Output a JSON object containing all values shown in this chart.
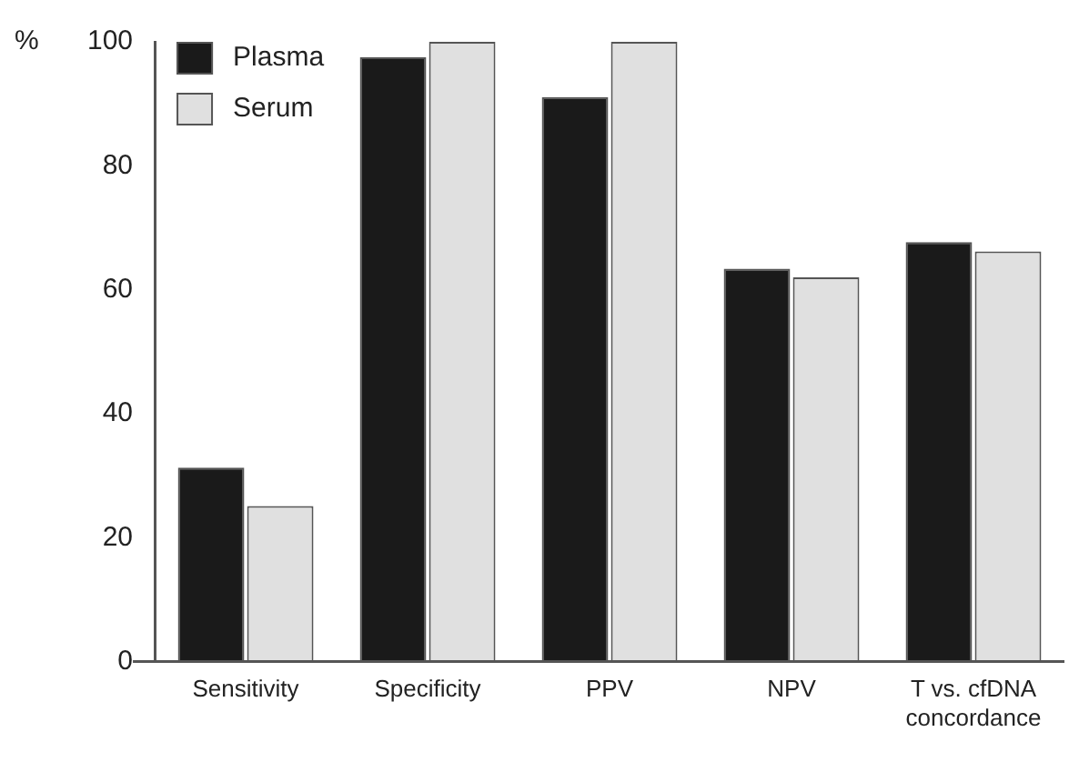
{
  "chart_data": {
    "type": "bar",
    "ylabel": "%",
    "categories": [
      "Sensitivity",
      "Specificity",
      "PPV",
      "NPV",
      "T vs. cfDNA concordance"
    ],
    "series": [
      {
        "name": "Plasma",
        "color": "#1a1a1a",
        "values": [
          31.3,
          97.5,
          91.1,
          63.4,
          67.7
        ]
      },
      {
        "name": "Serum",
        "color": "#e0e0e0",
        "values": [
          25.1,
          100,
          100,
          62.0,
          66.2
        ]
      }
    ],
    "ylim": [
      0,
      100
    ],
    "yticks": [
      0,
      20,
      40,
      60,
      80,
      100
    ],
    "grid": false,
    "legend": "top left"
  }
}
